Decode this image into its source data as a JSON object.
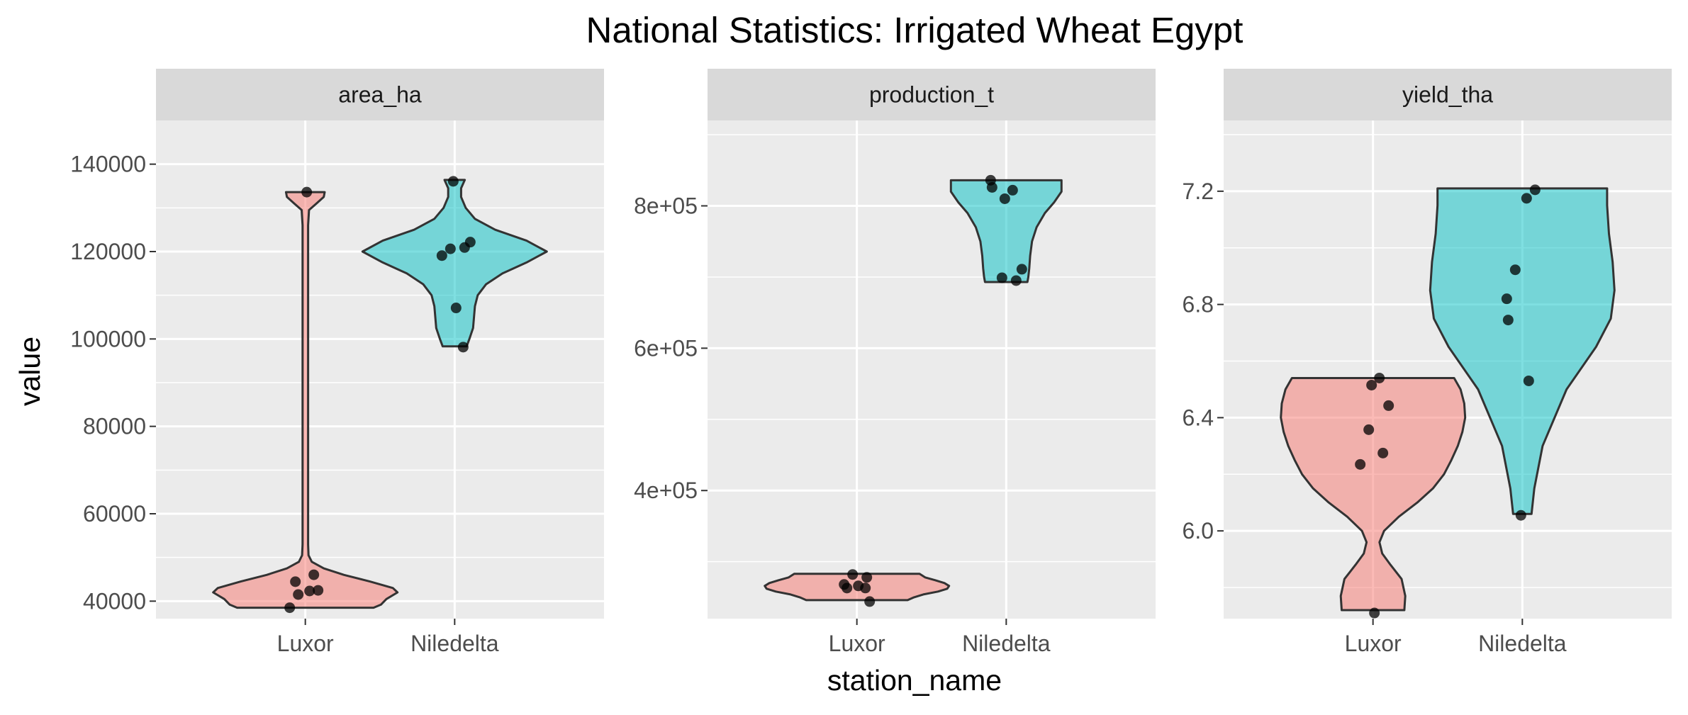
{
  "chart_data": {
    "type": "violin",
    "title": "National Statistics: Irrigated Wheat Egypt",
    "xlabel": "station_name",
    "ylabel": "value",
    "categories": [
      "Luxor",
      "Niledelta"
    ],
    "colors": {
      "Luxor": "#F8766D",
      "Niledelta": "#00BFC4"
    },
    "grid": true,
    "legend": "none",
    "facets": [
      {
        "name": "area_ha",
        "ylim": [
          36000,
          150000
        ],
        "yticks": [
          40000,
          60000,
          80000,
          100000,
          120000,
          140000
        ],
        "yticklabels": [
          "40000",
          "60000",
          "80000",
          "100000",
          "120000",
          "140000"
        ],
        "groups": [
          {
            "category": "Luxor",
            "points": [
              38500,
              42000,
              42000,
              42800,
              44300,
              46200,
              133600
            ],
            "density": [
              [
                38500,
                0.74
              ],
              [
                39200,
                0.82
              ],
              [
                40500,
                0.88
              ],
              [
                42000,
                1.0
              ],
              [
                43000,
                0.95
              ],
              [
                44500,
                0.7
              ],
              [
                46000,
                0.42
              ],
              [
                47500,
                0.2
              ],
              [
                49000,
                0.07
              ],
              [
                50500,
                0.035
              ],
              [
                53000,
                0.03
              ],
              [
                60000,
                0.03
              ],
              [
                80000,
                0.03
              ],
              [
                110000,
                0.03
              ],
              [
                126000,
                0.03
              ],
              [
                129500,
                0.04
              ],
              [
                131000,
                0.12
              ],
              [
                132500,
                0.2
              ],
              [
                133600,
                0.21
              ]
            ]
          },
          {
            "category": "Niledelta",
            "points": [
              98300,
              107100,
              119400,
              120600,
              120800,
              122000,
              136400
            ],
            "density": [
              [
                98300,
                0.13
              ],
              [
                100000,
                0.16
              ],
              [
                102500,
                0.2
              ],
              [
                105000,
                0.21
              ],
              [
                107500,
                0.22
              ],
              [
                110000,
                0.25
              ],
              [
                112500,
                0.34
              ],
              [
                115000,
                0.52
              ],
              [
                117500,
                0.78
              ],
              [
                120000,
                1.0
              ],
              [
                122500,
                0.78
              ],
              [
                125000,
                0.44
              ],
              [
                127500,
                0.22
              ],
              [
                130000,
                0.12
              ],
              [
                132500,
                0.07
              ],
              [
                134500,
                0.07
              ],
              [
                136400,
                0.11
              ]
            ]
          }
        ]
      },
      {
        "name": "production_t",
        "ylim": [
          220000,
          920000
        ],
        "yticks": [
          400000,
          600000,
          800000
        ],
        "yticklabels": [
          "4e+05",
          "6e+05",
          "8e+05"
        ],
        "groups": [
          {
            "category": "Luxor",
            "points": [
              246000,
              262000,
              264000,
              266000,
              270000,
              276000,
              283000
            ],
            "density": [
              [
                246000,
                0.55
              ],
              [
                250000,
                0.62
              ],
              [
                254000,
                0.72
              ],
              [
                258000,
                0.88
              ],
              [
                262000,
                0.98
              ],
              [
                266000,
                1.0
              ],
              [
                270000,
                0.95
              ],
              [
                274000,
                0.85
              ],
              [
                278000,
                0.74
              ],
              [
                283000,
                0.68
              ]
            ]
          },
          {
            "category": "Niledelta",
            "points": [
              693000,
              700000,
              710000,
              812000,
              822000,
              824000,
              836000
            ],
            "density": [
              [
                693000,
                0.23
              ],
              [
                700000,
                0.24
              ],
              [
                712000,
                0.25
              ],
              [
                730000,
                0.26
              ],
              [
                750000,
                0.28
              ],
              [
                770000,
                0.33
              ],
              [
                790000,
                0.42
              ],
              [
                805000,
                0.52
              ],
              [
                820000,
                0.6
              ],
              [
                836000,
                0.6
              ]
            ]
          }
        ]
      },
      {
        "name": "yield_tha",
        "ylim": [
          5.69,
          7.45
        ],
        "yticks": [
          6.0,
          6.4,
          6.8,
          7.2
        ],
        "yticklabels": [
          "6.0",
          "6.4",
          "6.8",
          "7.2"
        ],
        "groups": [
          {
            "category": "Luxor",
            "points": [
              5.71,
              6.24,
              6.27,
              6.36,
              6.44,
              6.52,
              6.54
            ],
            "density": [
              [
                5.72,
                0.34
              ],
              [
                5.77,
                0.35
              ],
              [
                5.83,
                0.31
              ],
              [
                5.88,
                0.19
              ],
              [
                5.92,
                0.1
              ],
              [
                5.96,
                0.07
              ],
              [
                6.0,
                0.12
              ],
              [
                6.05,
                0.28
              ],
              [
                6.1,
                0.48
              ],
              [
                6.15,
                0.65
              ],
              [
                6.2,
                0.77
              ],
              [
                6.25,
                0.85
              ],
              [
                6.3,
                0.92
              ],
              [
                6.35,
                0.97
              ],
              [
                6.4,
                1.0
              ],
              [
                6.45,
                0.99
              ],
              [
                6.5,
                0.95
              ],
              [
                6.54,
                0.88
              ]
            ]
          },
          {
            "category": "Niledelta",
            "points": [
              6.06,
              6.53,
              6.74,
              6.82,
              6.93,
              7.17,
              7.21
            ],
            "density": [
              [
                6.06,
                0.1
              ],
              [
                6.15,
                0.13
              ],
              [
                6.3,
                0.22
              ],
              [
                6.5,
                0.48
              ],
              [
                6.65,
                0.8
              ],
              [
                6.75,
                0.96
              ],
              [
                6.85,
                1.0
              ],
              [
                6.95,
                0.98
              ],
              [
                7.05,
                0.94
              ],
              [
                7.15,
                0.92
              ],
              [
                7.21,
                0.92
              ]
            ]
          }
        ]
      }
    ]
  }
}
